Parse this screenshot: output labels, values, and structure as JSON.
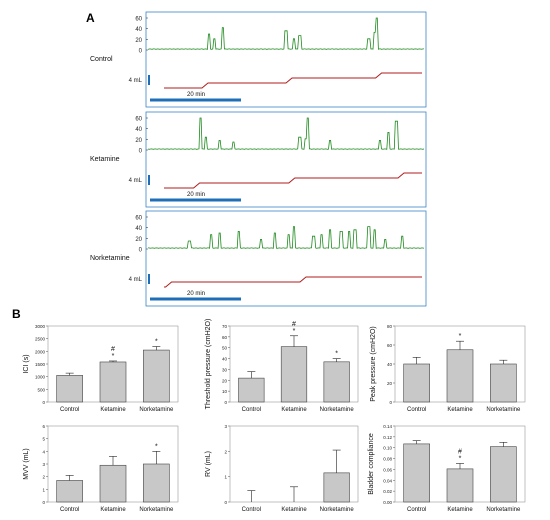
{
  "panel_a": {
    "label": "A",
    "tick_labels": [
      "60",
      "40",
      "20",
      "0"
    ],
    "volume_label": "4 mL",
    "scale_label": "20 min",
    "colors": {
      "pressure": "#1f8a1f",
      "volume": "#b01c1c",
      "scalebar": "#1f6fb8",
      "frame": "#3c84c8"
    },
    "traces": [
      {
        "group": "Control"
      },
      {
        "group": "Ketamine"
      },
      {
        "group": "Norketamine"
      }
    ]
  },
  "panel_b": {
    "label": "B"
  },
  "chart_data": [
    {
      "type": "bar",
      "ylabel": "ICI (s)",
      "ylim": [
        0,
        3000
      ],
      "yticks": [
        0,
        500,
        1000,
        1500,
        2000,
        2500,
        3000
      ],
      "categories": [
        "Control",
        "Ketamine",
        "Norketamine"
      ],
      "values": [
        1050,
        1580,
        2050
      ],
      "errors": [
        90,
        40,
        140
      ],
      "annotations": [
        "",
        "#\n*",
        "*"
      ]
    },
    {
      "type": "bar",
      "ylabel": "Threshold pressure (cmH2O)",
      "ylim": [
        0,
        70
      ],
      "yticks": [
        0,
        10,
        20,
        30,
        40,
        50,
        60,
        70
      ],
      "categories": [
        "Control",
        "Ketamine",
        "Norketamine"
      ],
      "values": [
        22,
        51,
        37
      ],
      "errors": [
        6,
        10,
        3
      ],
      "annotations": [
        "",
        "#\n*",
        "*"
      ]
    },
    {
      "type": "bar",
      "ylabel": "Peak pressure (cmH2O)",
      "ylim": [
        0,
        80
      ],
      "yticks": [
        0,
        20,
        40,
        60,
        80
      ],
      "categories": [
        "Control",
        "Ketamine",
        "Norketamine"
      ],
      "values": [
        40,
        55,
        40
      ],
      "errors": [
        7,
        9,
        4
      ],
      "annotations": [
        "",
        "*",
        ""
      ]
    },
    {
      "type": "bar",
      "ylabel": "MVV (mL)",
      "ylim": [
        0,
        6
      ],
      "yticks": [
        0,
        1,
        2,
        3,
        4,
        5,
        6
      ],
      "categories": [
        "Control",
        "Ketamine",
        "Norketamine"
      ],
      "values": [
        1.7,
        2.9,
        3.0
      ],
      "errors": [
        0.4,
        0.7,
        1.0
      ],
      "annotations": [
        "",
        "",
        "*"
      ]
    },
    {
      "type": "bar",
      "ylabel": "RV (mL)",
      "ylim": [
        0,
        3
      ],
      "yticks": [
        0,
        1,
        2,
        3
      ],
      "categories": [
        "Control",
        "Ketamine",
        "Norketamine"
      ],
      "values": [
        0.0,
        0.0,
        1.15
      ],
      "errors": [
        0.45,
        0.6,
        0.9
      ],
      "annotations": [
        "",
        "",
        ""
      ]
    },
    {
      "type": "bar",
      "ylabel": "Bladder compliance",
      "ylim": [
        0,
        0.14
      ],
      "yticks": [
        0.0,
        0.02,
        0.04,
        0.06,
        0.08,
        0.1,
        0.12,
        0.14
      ],
      "categories": [
        "Control",
        "Ketamine",
        "Norketamine"
      ],
      "values": [
        0.107,
        0.061,
        0.102
      ],
      "errors": [
        0.006,
        0.01,
        0.008
      ],
      "annotations": [
        "",
        "#\n*",
        ""
      ]
    }
  ]
}
